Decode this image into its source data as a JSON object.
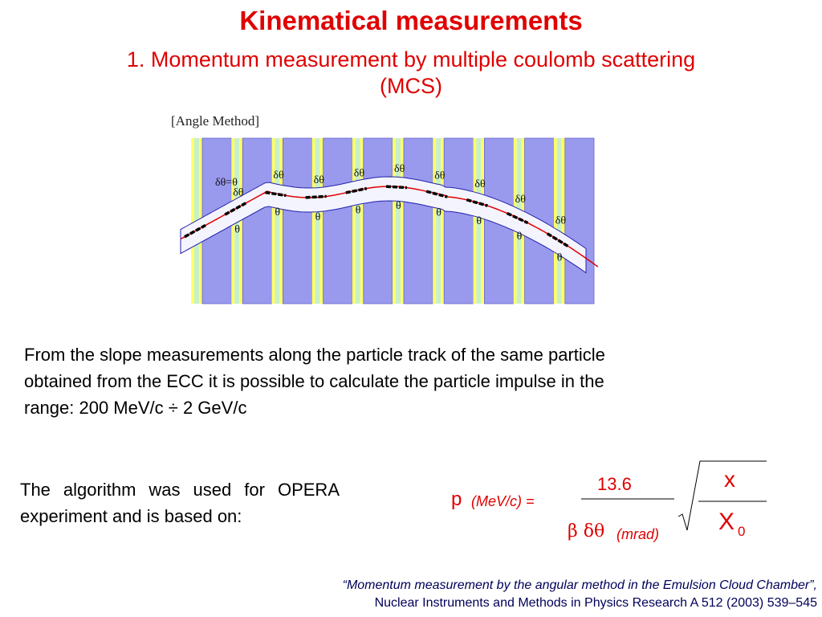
{
  "slide": {
    "title": "Kinematical measurements",
    "subtitle_line1": "1. Momentum measurement by multiple coulomb scattering",
    "subtitle_line2": "(MCS)"
  },
  "diagram": {
    "label": "[Angle Method]",
    "d_theta": "δθ",
    "theta": "θ",
    "first_label": "δθ=θ",
    "colors": {
      "plate": "#9999ee",
      "base": "#c8f0c8",
      "emulsion": "#ffff66",
      "band": "#f4f4ff",
      "track": "#e00000",
      "segment": "#000000"
    }
  },
  "paragraph": {
    "line1": "From the slope measurements along the particle track of the same particle",
    "line2": "obtained  from the ECC it is possible to calculate the particle impulse in the",
    "line3": "range: 200 MeV/c ÷ 2 GeV/c"
  },
  "algorithm": {
    "text": "The algorithm was used for OPERA experiment and is based on:"
  },
  "formula": {
    "p": "p",
    "p_unit": "(MeV/c) =",
    "numerator": "13.6",
    "beta_dtheta": "β δθ",
    "denom_unit": "(mrad)",
    "x": "x",
    "X": "X",
    "X_sub": "0"
  },
  "reference": {
    "line1": "“Momentum measurement by the angular method in the Emulsion Cloud Chamber”,",
    "line2": "Nuclear Instruments and Methods in Physics Research A 512 (2003) 539–545"
  }
}
